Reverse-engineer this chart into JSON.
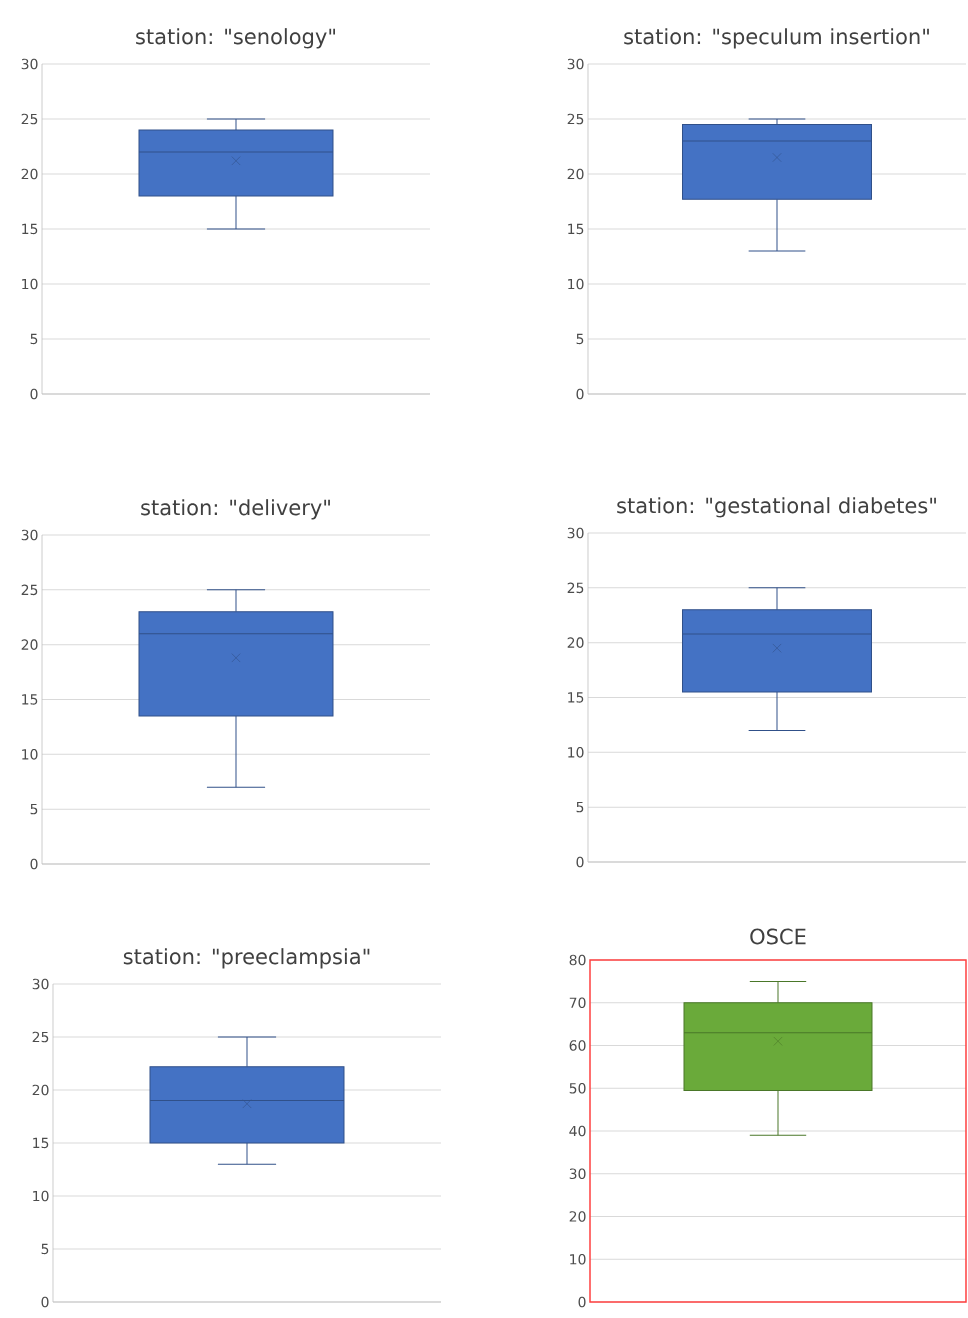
{
  "chart_data": [
    {
      "type": "box",
      "title": "station: \"senology\"",
      "categories": [
        null
      ],
      "boxes": [
        {
          "low": 15,
          "q1": 18,
          "median": 22,
          "q3": 24,
          "high": 25,
          "mean": 21.2
        }
      ],
      "color": "#4472c4",
      "ylim": [
        0,
        30
      ],
      "yticks": [
        0,
        5,
        10,
        15,
        20,
        25,
        30
      ],
      "grid": "y",
      "tick_labels": "y"
    },
    {
      "type": "box",
      "title": "station: \"speculum insertion\"",
      "categories": [
        null
      ],
      "boxes": [
        {
          "low": 13,
          "q1": 17.7,
          "median": 23,
          "q3": 24.5,
          "high": 25,
          "mean": 21.5
        }
      ],
      "color": "#4472c4",
      "ylim": [
        0,
        30
      ],
      "yticks": [
        0,
        5,
        10,
        15,
        20,
        25,
        30
      ],
      "grid": "y",
      "tick_labels": "y"
    },
    {
      "type": "box",
      "title": "station: \"delivery\"",
      "categories": [
        null
      ],
      "boxes": [
        {
          "low": 7,
          "q1": 13.5,
          "median": 21,
          "q3": 23,
          "high": 25,
          "mean": 18.8
        }
      ],
      "color": "#4472c4",
      "ylim": [
        0,
        30
      ],
      "yticks": [
        0,
        5,
        10,
        15,
        20,
        25,
        30
      ],
      "grid": "y",
      "tick_labels": "y"
    },
    {
      "type": "box",
      "title": "station: \"gestational diabetes\"",
      "categories": [
        null
      ],
      "boxes": [
        {
          "low": 12,
          "q1": 15.5,
          "median": 20.8,
          "q3": 23,
          "high": 25,
          "mean": 19.5
        }
      ],
      "color": "#4472c4",
      "ylim": [
        0,
        30
      ],
      "yticks": [
        0,
        5,
        10,
        15,
        20,
        25,
        30
      ],
      "grid": "y",
      "tick_labels": "y"
    },
    {
      "type": "box",
      "title": "station: \"preeclampsia\"",
      "categories": [
        null
      ],
      "boxes": [
        {
          "low": 13,
          "q1": 15,
          "median": 19,
          "q3": 22.2,
          "high": 25,
          "mean": 18.7
        }
      ],
      "color": "#4472c4",
      "ylim": [
        0,
        30
      ],
      "yticks": [
        0,
        5,
        10,
        15,
        20,
        25,
        30
      ],
      "grid": "y",
      "tick_labels": "y"
    },
    {
      "type": "box",
      "title": "OSCE",
      "categories": [
        null
      ],
      "boxes": [
        {
          "low": 39,
          "q1": 49.5,
          "median": 63,
          "q3": 70,
          "high": 75,
          "mean": 61
        }
      ],
      "color": "#6aaa3a",
      "ylim": [
        0,
        80
      ],
      "yticks": [
        0,
        10,
        20,
        30,
        40,
        50,
        60,
        70,
        80
      ],
      "grid": "y",
      "tick_labels": "y"
    }
  ]
}
